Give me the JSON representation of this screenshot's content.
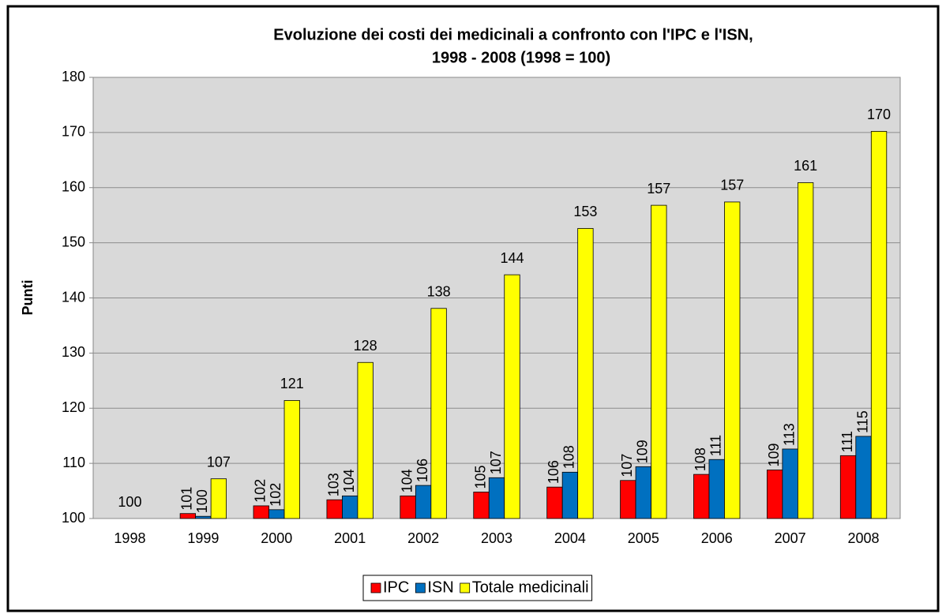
{
  "chart_data": {
    "type": "bar",
    "title": "Evoluzione dei costi dei medicinali a confronto con l'IPC e l'ISN,",
    "subtitle": "1998 - 2008 (1998 = 100)",
    "y_label": "Punti",
    "categories": [
      "1998",
      "1999",
      "2000",
      "2001",
      "2002",
      "2003",
      "2004",
      "2005",
      "2006",
      "2007",
      "2008"
    ],
    "series": [
      {
        "name": "IPC",
        "color": "#ff0000",
        "values": [
          100,
          100.9,
          102.3,
          103.4,
          104.1,
          104.8,
          105.7,
          106.9,
          108.0,
          108.8,
          111.4
        ],
        "value_labels": [
          null,
          "101",
          "102",
          "103",
          "104",
          "105",
          "106",
          "107",
          "108",
          "109",
          "111"
        ]
      },
      {
        "name": "ISN",
        "color": "#0070c0",
        "values": [
          100,
          100.4,
          101.6,
          104.1,
          106.0,
          107.4,
          108.4,
          109.4,
          110.7,
          112.6,
          114.9
        ],
        "value_labels": [
          null,
          "100",
          "102",
          "104",
          "106",
          "107",
          "108",
          "109",
          "111",
          "113",
          "115"
        ]
      },
      {
        "name": "Totale medicinali",
        "color": "#ffff00",
        "values": [
          100,
          107.2,
          121.4,
          128.3,
          138.1,
          144.2,
          152.6,
          156.8,
          157.4,
          160.9,
          170.2
        ],
        "value_labels": [
          "100",
          "107",
          "121",
          "128",
          "138",
          "144",
          "153",
          "157",
          "157",
          "161",
          "170"
        ]
      }
    ],
    "ylim": [
      100,
      180
    ],
    "yticks": [
      100,
      110,
      120,
      130,
      140,
      150,
      160,
      170,
      180
    ],
    "grid": true,
    "legend": "bottom"
  }
}
